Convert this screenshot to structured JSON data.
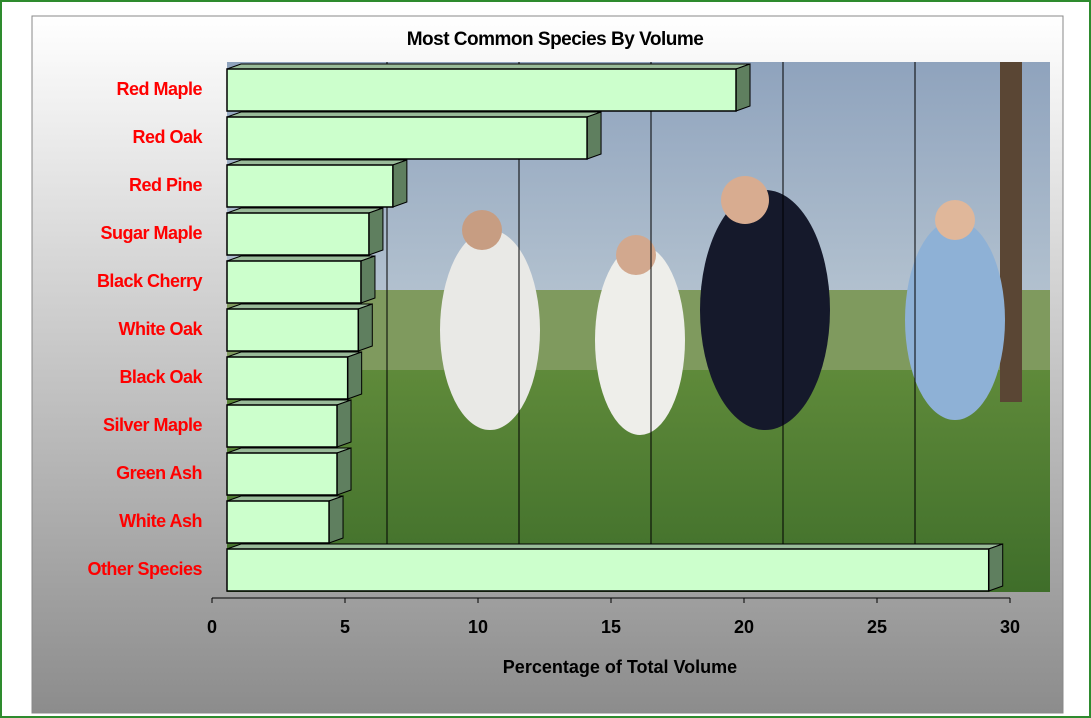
{
  "chart_data": {
    "type": "bar",
    "orientation": "horizontal",
    "title": "Most Common Species By Volume",
    "x_label": "Percentage of Total Volume",
    "categories": [
      "Red Maple",
      "Red Oak",
      "Red Pine",
      "Sugar Maple",
      "Black Cherry",
      "White Oak",
      "Black Oak",
      "Silver Maple",
      "Green Ash",
      "White Ash",
      "Other Species"
    ],
    "values": [
      19.7,
      14.1,
      6.8,
      5.9,
      5.6,
      5.5,
      5.1,
      4.7,
      4.7,
      4.4,
      29.2
    ],
    "color": "#ccffcc",
    "side_color": "#5f7f5f",
    "label_color": "#ff0000",
    "xlim": [
      0,
      30
    ],
    "xticks": [
      0,
      5,
      10,
      15,
      20,
      25,
      30
    ],
    "grid": true
  }
}
